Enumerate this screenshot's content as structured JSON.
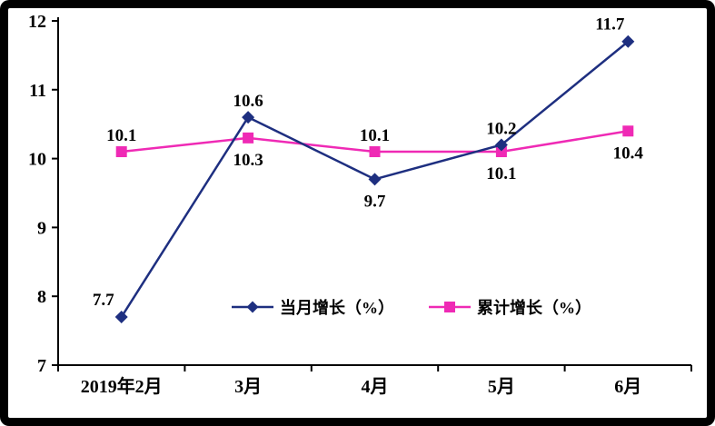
{
  "chart_data": {
    "type": "line",
    "categories": [
      "2019年2月",
      "3月",
      "4月",
      "5月",
      "6月"
    ],
    "series": [
      {
        "name": "当月增长（%）",
        "values": [
          7.7,
          10.6,
          9.7,
          10.2,
          11.7
        ],
        "color": "#1e2f80",
        "marker": "diamond",
        "label_positions": [
          "above-left",
          "above",
          "below",
          "above",
          "above-left"
        ]
      },
      {
        "name": "累计增长（%）",
        "values": [
          10.1,
          10.3,
          10.1,
          10.1,
          10.4
        ],
        "color": "#ef2ab5",
        "marker": "square",
        "label_positions": [
          "above",
          "below",
          "above",
          "below",
          "below"
        ]
      }
    ],
    "ylim": [
      7,
      12
    ],
    "yticks": [
      7,
      8,
      9,
      10,
      11,
      12
    ],
    "grid": false,
    "legend_position": "bottom-center",
    "axis_color": "#000000",
    "background_color": "#ffffff",
    "frame_color": "#000000"
  }
}
